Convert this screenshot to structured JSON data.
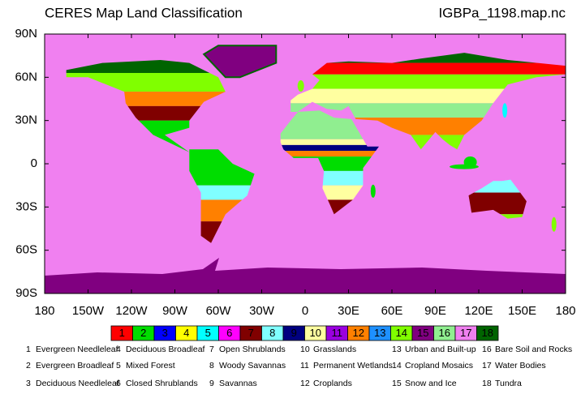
{
  "header": {
    "title": "CERES Map Land Classification",
    "file": "IGBPa_1198.map.nc"
  },
  "axes": {
    "lat_labels": [
      "90N",
      "60N",
      "30N",
      "0",
      "30S",
      "60S",
      "90S"
    ],
    "lon_labels": [
      "180",
      "150W",
      "120W",
      "90W",
      "60W",
      "30W",
      "0",
      "30E",
      "60E",
      "90E",
      "120E",
      "150E",
      "180"
    ]
  },
  "legend": {
    "classes": [
      {
        "number": "1",
        "name": "Evergreen Needleleaf",
        "color": "#ff0000"
      },
      {
        "number": "2",
        "name": "Evergreen Broadleaf",
        "color": "#00dd00"
      },
      {
        "number": "3",
        "name": "Deciduous Needleleaf",
        "color": "#0000ff"
      },
      {
        "number": "4",
        "name": "Deciduous Broadleaf",
        "color": "#ffff00"
      },
      {
        "number": "5",
        "name": "Mixed Forest",
        "color": "#00ffff"
      },
      {
        "number": "6",
        "name": "Closed Shrublands",
        "color": "#ff00ff"
      },
      {
        "number": "7",
        "name": "Open Shrublands",
        "color": "#800000"
      },
      {
        "number": "8",
        "name": "Woody Savannas",
        "color": "#80ffff"
      },
      {
        "number": "9",
        "name": "Savannas",
        "color": "#000080"
      },
      {
        "number": "10",
        "name": "Grasslands",
        "color": "#ffffa0"
      },
      {
        "number": "11",
        "name": "Permanent Wetlands",
        "color": "#9a00e0"
      },
      {
        "number": "12",
        "name": "Croplands",
        "color": "#ff8000"
      },
      {
        "number": "13",
        "name": "Urban and Built-up",
        "color": "#1e90ff"
      },
      {
        "number": "14",
        "name": "Cropland Mosaics",
        "color": "#80ff00"
      },
      {
        "number": "15",
        "name": "Snow and Ice",
        "color": "#800080"
      },
      {
        "number": "16",
        "name": "Bare Soil and Rocks",
        "color": "#90ee90"
      },
      {
        "number": "17",
        "name": "Water Bodies",
        "color": "#f080f0"
      },
      {
        "number": "18",
        "name": "Tundra",
        "color": "#006400"
      }
    ]
  }
}
